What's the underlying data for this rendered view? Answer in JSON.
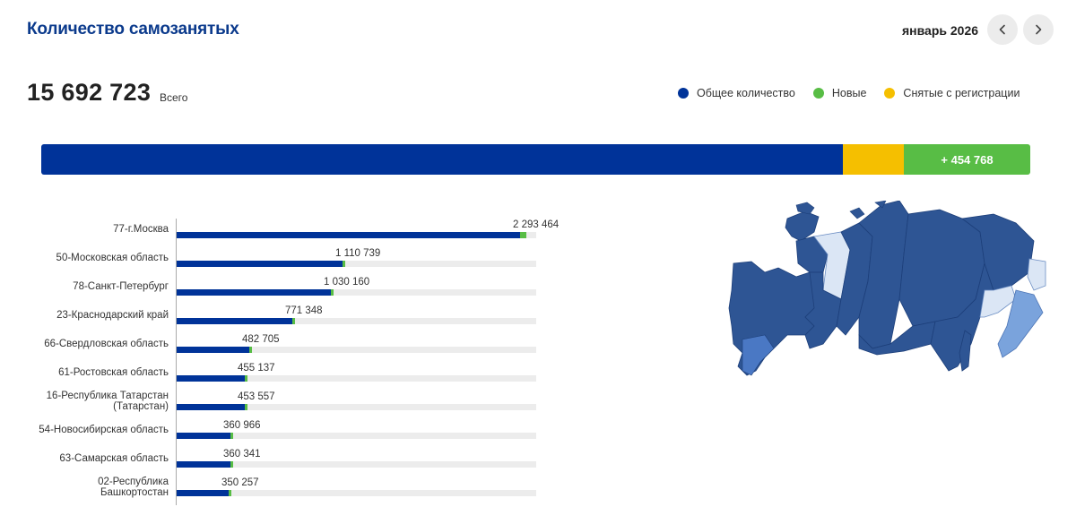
{
  "header": {
    "title": "Количество самозанятых",
    "period": "январь 2026",
    "prev_icon": "chevron-left-icon",
    "next_icon": "chevron-right-icon"
  },
  "summary": {
    "total": "15 692 723",
    "total_label": "Всего",
    "new_label": "+ 454 768"
  },
  "legend": [
    {
      "label": "Общее количество",
      "color": "#003399"
    },
    {
      "label": "Новые",
      "color": "#58bd45"
    },
    {
      "label": "Снятые с регистрации",
      "color": "#f5bf00"
    }
  ],
  "colors": {
    "total": "#003399",
    "new": "#58bd45",
    "removed": "#f5bf00",
    "track": "#ececec",
    "map_dark": "#2e5594",
    "map_light": "#dbe6f5"
  },
  "regions": [
    {
      "label": "77-г.Москва",
      "value": "2 293 464",
      "total": 2293464
    },
    {
      "label": "50-Московская область",
      "value": "1 110 739",
      "total": 1110739
    },
    {
      "label": "78-Санкт-Петербург",
      "value": "1 030 160",
      "total": 1030160
    },
    {
      "label": "23-Краснодарский край",
      "value": "771 348",
      "total": 771348
    },
    {
      "label": "66-Свердловская область",
      "value": "482 705",
      "total": 482705
    },
    {
      "label": "61-Ростовская область",
      "value": "455 137",
      "total": 455137
    },
    {
      "label": "16-Республика Татарстан (Татарстан)",
      "value": "453 557",
      "total": 453557
    },
    {
      "label": "54-Новосибирская область",
      "value": "360 966",
      "total": 360966
    },
    {
      "label": "63-Самарская область",
      "value": "360 341",
      "total": 360341
    },
    {
      "label": "02-Республика Башкортостан",
      "value": "350 257",
      "total": 350257
    }
  ],
  "chart_data": {
    "type": "bar",
    "orientation": "horizontal",
    "categories": [
      "77-г.Москва",
      "50-Московская область",
      "78-Санкт-Петербург",
      "23-Краснодарский край",
      "66-Свердловская область",
      "61-Ростовская область",
      "16-Республика Татарстан (Татарстан)",
      "54-Новосибирская область",
      "63-Самарская область",
      "02-Республика Башкортостан"
    ],
    "values": [
      2293464,
      1110739,
      1030160,
      771348,
      482705,
      455137,
      453557,
      360966,
      360341,
      350257
    ],
    "xlim": [
      0,
      4000000
    ]
  },
  "map": {
    "icon": "russia-regions-map"
  }
}
